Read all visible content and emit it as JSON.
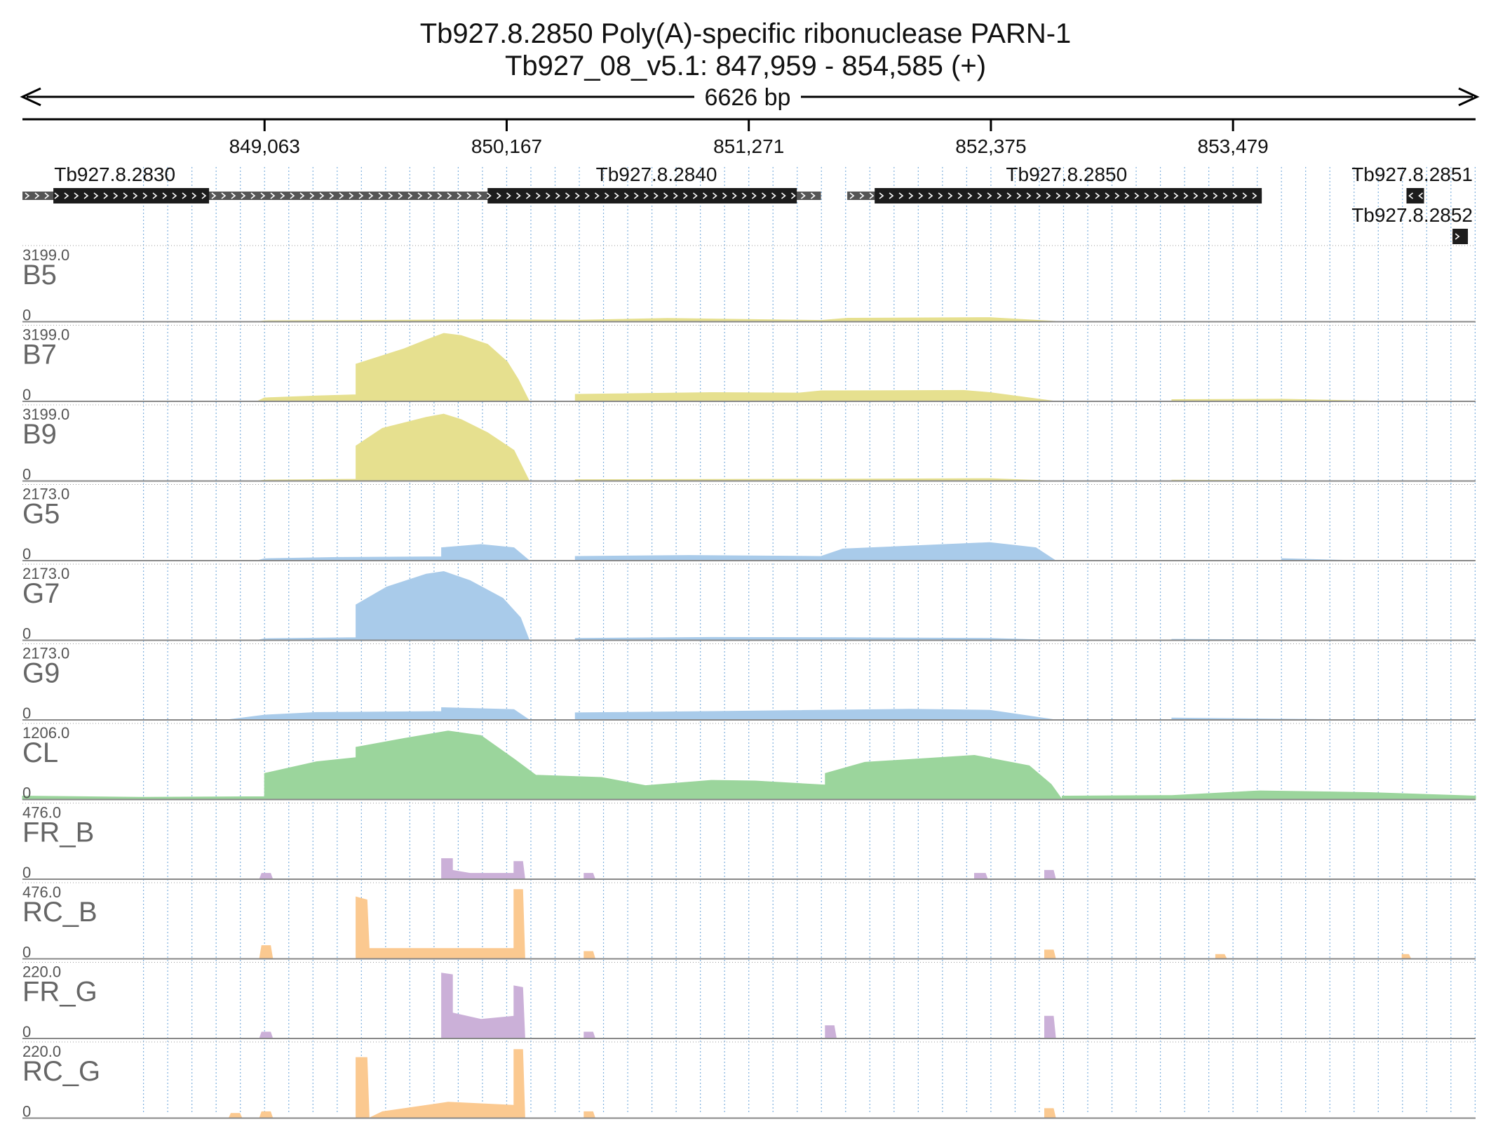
{
  "header": {
    "title": "Tb927.8.2850  Poly(A)-specific ribonuclease PARN-1",
    "location": "Tb927_08_v5.1: 847,959 - 854,585 (+)",
    "span": "6626 bp"
  },
  "chart_data": {
    "type": "area",
    "x_range": [
      847959,
      854585
    ],
    "x_ticks": [
      849063,
      850167,
      851271,
      852375,
      853479
    ],
    "x_tick_labels": [
      "849,063",
      "850,167",
      "851,271",
      "852,375",
      "853,479"
    ],
    "grid": true,
    "genes": [
      {
        "name": "Tb927.8.2830",
        "utr": [
          847959,
          850130
        ],
        "cds": [
          848100,
          848810
        ],
        "strand": "+"
      },
      {
        "name": "Tb927.8.2840",
        "utr": [
          850020,
          851600
        ],
        "cds": [
          850080,
          851490
        ],
        "strand": "+"
      },
      {
        "name": "Tb927.8.2850",
        "utr": [
          851720,
          853500
        ],
        "cds": [
          851845,
          853610
        ],
        "strand": "+"
      },
      {
        "name": "Tb927.8.2851",
        "utr": [
          854270,
          854350
        ],
        "cds": [
          854270,
          854350
        ],
        "strand": "-"
      },
      {
        "name": "Tb927.8.2852",
        "utr": [
          854480,
          854550
        ],
        "cds": [
          854480,
          854550
        ],
        "strand": "+"
      }
    ],
    "tracks": [
      {
        "name": "B5",
        "max": "3199.0",
        "min": "0",
        "ymax": 3199,
        "color": "#e6e08f",
        "points": [
          [
            849030,
            0
          ],
          [
            849063,
            40
          ],
          [
            850100,
            90
          ],
          [
            850500,
            70
          ],
          [
            850900,
            150
          ],
          [
            851600,
            60
          ],
          [
            851720,
            160
          ],
          [
            852370,
            190
          ],
          [
            852700,
            0
          ]
        ]
      },
      {
        "name": "B7",
        "max": "3199.0",
        "min": "0",
        "ymax": 3199,
        "color": "#e6e08f",
        "points": [
          [
            849030,
            0
          ],
          [
            849063,
            160
          ],
          [
            849300,
            250
          ],
          [
            849480,
            300
          ],
          [
            849480,
            1700
          ],
          [
            849700,
            2400
          ],
          [
            849800,
            2800
          ],
          [
            849880,
            3100
          ],
          [
            849960,
            3000
          ],
          [
            850080,
            2600
          ],
          [
            850170,
            1800
          ],
          [
            850220,
            1000
          ],
          [
            850270,
            0
          ],
          [
            850480,
            0
          ],
          [
            850480,
            320
          ],
          [
            851100,
            400
          ],
          [
            851500,
            380
          ],
          [
            851600,
            480
          ],
          [
            852250,
            500
          ],
          [
            852370,
            400
          ],
          [
            852670,
            0
          ],
          [
            853200,
            0
          ],
          [
            853200,
            80
          ],
          [
            853700,
            100
          ],
          [
            854200,
            0
          ]
        ]
      },
      {
        "name": "B9",
        "max": "3199.0",
        "min": "0",
        "ymax": 3199,
        "color": "#e6e08f",
        "points": [
          [
            849030,
            0
          ],
          [
            849063,
            40
          ],
          [
            849480,
            80
          ],
          [
            849480,
            1600
          ],
          [
            849600,
            2400
          ],
          [
            849800,
            2900
          ],
          [
            849880,
            3050
          ],
          [
            849960,
            2800
          ],
          [
            850080,
            2200
          ],
          [
            850200,
            1400
          ],
          [
            850270,
            0
          ],
          [
            850480,
            0
          ],
          [
            850480,
            60
          ],
          [
            851600,
            80
          ],
          [
            852370,
            110
          ],
          [
            852670,
            0
          ],
          [
            853200,
            0
          ],
          [
            853200,
            40
          ],
          [
            854200,
            0
          ]
        ]
      },
      {
        "name": "G5",
        "max": "2173.0",
        "min": "0",
        "ymax": 2173,
        "color": "#a9cbea",
        "points": [
          [
            849030,
            0
          ],
          [
            849063,
            60
          ],
          [
            849400,
            100
          ],
          [
            849870,
            120
          ],
          [
            849870,
            400
          ],
          [
            850050,
            500
          ],
          [
            850200,
            400
          ],
          [
            850270,
            0
          ],
          [
            850480,
            0
          ],
          [
            850480,
            130
          ],
          [
            851000,
            160
          ],
          [
            851600,
            130
          ],
          [
            851700,
            360
          ],
          [
            852370,
            560
          ],
          [
            852580,
            400
          ],
          [
            852670,
            0
          ],
          [
            853700,
            0
          ],
          [
            853700,
            60
          ],
          [
            854050,
            0
          ]
        ]
      },
      {
        "name": "G7",
        "max": "2173.0",
        "min": "0",
        "ymax": 2173,
        "color": "#a9cbea",
        "points": [
          [
            849030,
            0
          ],
          [
            849063,
            50
          ],
          [
            849480,
            80
          ],
          [
            849480,
            1100
          ],
          [
            849620,
            1650
          ],
          [
            849800,
            2050
          ],
          [
            849880,
            2130
          ],
          [
            850000,
            1850
          ],
          [
            850150,
            1300
          ],
          [
            850230,
            700
          ],
          [
            850270,
            0
          ],
          [
            850480,
            0
          ],
          [
            850480,
            60
          ],
          [
            851100,
            90
          ],
          [
            851700,
            80
          ],
          [
            852370,
            60
          ],
          [
            852670,
            0
          ],
          [
            853200,
            0
          ],
          [
            853200,
            30
          ],
          [
            854050,
            0
          ]
        ]
      },
      {
        "name": "G9",
        "max": "2173.0",
        "min": "0",
        "ymax": 2173,
        "color": "#a9cbea",
        "points": [
          [
            848890,
            0
          ],
          [
            849063,
            150
          ],
          [
            849300,
            230
          ],
          [
            849870,
            260
          ],
          [
            849870,
            380
          ],
          [
            850200,
            320
          ],
          [
            850270,
            0
          ],
          [
            850480,
            0
          ],
          [
            850480,
            220
          ],
          [
            851100,
            260
          ],
          [
            852000,
            330
          ],
          [
            852370,
            300
          ],
          [
            852670,
            0
          ],
          [
            853200,
            0
          ],
          [
            853200,
            60
          ],
          [
            854050,
            0
          ]
        ]
      },
      {
        "name": "CL",
        "max": "1206.0",
        "min": "0",
        "ymax": 1206,
        "color": "#9bd59c",
        "points": [
          [
            847959,
            60
          ],
          [
            848500,
            40
          ],
          [
            849063,
            50
          ],
          [
            849063,
            450
          ],
          [
            849300,
            650
          ],
          [
            849480,
            720
          ],
          [
            849480,
            900
          ],
          [
            849700,
            1050
          ],
          [
            849900,
            1180
          ],
          [
            850050,
            1100
          ],
          [
            850200,
            700
          ],
          [
            850300,
            420
          ],
          [
            850600,
            380
          ],
          [
            850800,
            240
          ],
          [
            851100,
            330
          ],
          [
            851300,
            320
          ],
          [
            851620,
            250
          ],
          [
            851620,
            450
          ],
          [
            851800,
            640
          ],
          [
            852300,
            760
          ],
          [
            852550,
            580
          ],
          [
            852650,
            260
          ],
          [
            852700,
            0
          ],
          [
            852700,
            60
          ],
          [
            853200,
            70
          ],
          [
            853600,
            150
          ],
          [
            854100,
            120
          ],
          [
            854585,
            60
          ]
        ]
      },
      {
        "name": "FR_B",
        "max": "476.0",
        "min": "0",
        "ymax": 476,
        "color": "#cbb0d8",
        "points": [
          [
            849040,
            0
          ],
          [
            849050,
            40
          ],
          [
            849090,
            40
          ],
          [
            849100,
            0
          ],
          [
            849870,
            0
          ],
          [
            849870,
            140
          ],
          [
            849920,
            140
          ],
          [
            849920,
            60
          ],
          [
            850000,
            40
          ],
          [
            850200,
            40
          ],
          [
            850200,
            120
          ],
          [
            850240,
            120
          ],
          [
            850250,
            0
          ],
          [
            850520,
            0
          ],
          [
            850520,
            40
          ],
          [
            850560,
            40
          ],
          [
            850570,
            0
          ],
          [
            852300,
            0
          ],
          [
            852300,
            40
          ],
          [
            852350,
            40
          ],
          [
            852360,
            0
          ],
          [
            852620,
            0
          ],
          [
            852620,
            60
          ],
          [
            852660,
            60
          ],
          [
            852670,
            0
          ]
        ]
      },
      {
        "name": "RC_B",
        "max": "476.0",
        "min": "0",
        "ymax": 476,
        "color": "#fbc990",
        "points": [
          [
            849040,
            0
          ],
          [
            849050,
            90
          ],
          [
            849090,
            90
          ],
          [
            849100,
            0
          ],
          [
            849480,
            0
          ],
          [
            849480,
            420
          ],
          [
            849530,
            400
          ],
          [
            849540,
            70
          ],
          [
            850000,
            70
          ],
          [
            850200,
            70
          ],
          [
            850200,
            470
          ],
          [
            850240,
            470
          ],
          [
            850250,
            0
          ],
          [
            850520,
            0
          ],
          [
            850520,
            50
          ],
          [
            850560,
            50
          ],
          [
            850570,
            0
          ],
          [
            852620,
            0
          ],
          [
            852620,
            60
          ],
          [
            852660,
            60
          ],
          [
            852670,
            0
          ],
          [
            853400,
            0
          ],
          [
            853400,
            30
          ],
          [
            853440,
            30
          ],
          [
            853450,
            0
          ],
          [
            854250,
            0
          ],
          [
            854250,
            30
          ],
          [
            854280,
            30
          ],
          [
            854290,
            0
          ]
        ]
      },
      {
        "name": "FR_G",
        "max": "220.0",
        "min": "0",
        "ymax": 220,
        "color": "#cbb0d8",
        "points": [
          [
            849040,
            0
          ],
          [
            849050,
            20
          ],
          [
            849090,
            20
          ],
          [
            849100,
            0
          ],
          [
            849870,
            0
          ],
          [
            849870,
            205
          ],
          [
            849920,
            200
          ],
          [
            849920,
            80
          ],
          [
            850050,
            60
          ],
          [
            850200,
            70
          ],
          [
            850200,
            165
          ],
          [
            850240,
            160
          ],
          [
            850250,
            0
          ],
          [
            850520,
            0
          ],
          [
            850520,
            20
          ],
          [
            850560,
            20
          ],
          [
            850570,
            0
          ],
          [
            851620,
            0
          ],
          [
            851620,
            40
          ],
          [
            851660,
            40
          ],
          [
            851670,
            0
          ],
          [
            852620,
            0
          ],
          [
            852620,
            70
          ],
          [
            852660,
            70
          ],
          [
            852670,
            0
          ]
        ]
      },
      {
        "name": "RC_G",
        "max": "220.0",
        "min": "0",
        "ymax": 220,
        "color": "#fbc990",
        "points": [
          [
            848900,
            0
          ],
          [
            848910,
            15
          ],
          [
            848950,
            15
          ],
          [
            848960,
            0
          ],
          [
            849040,
            0
          ],
          [
            849050,
            20
          ],
          [
            849090,
            20
          ],
          [
            849100,
            0
          ],
          [
            849480,
            0
          ],
          [
            849480,
            190
          ],
          [
            849530,
            190
          ],
          [
            849540,
            0
          ],
          [
            849600,
            20
          ],
          [
            849900,
            50
          ],
          [
            850200,
            40
          ],
          [
            850200,
            215
          ],
          [
            850240,
            215
          ],
          [
            850250,
            0
          ],
          [
            850520,
            0
          ],
          [
            850520,
            20
          ],
          [
            850560,
            20
          ],
          [
            850570,
            0
          ],
          [
            852620,
            0
          ],
          [
            852620,
            30
          ],
          [
            852660,
            30
          ],
          [
            852670,
            0
          ]
        ]
      }
    ]
  }
}
